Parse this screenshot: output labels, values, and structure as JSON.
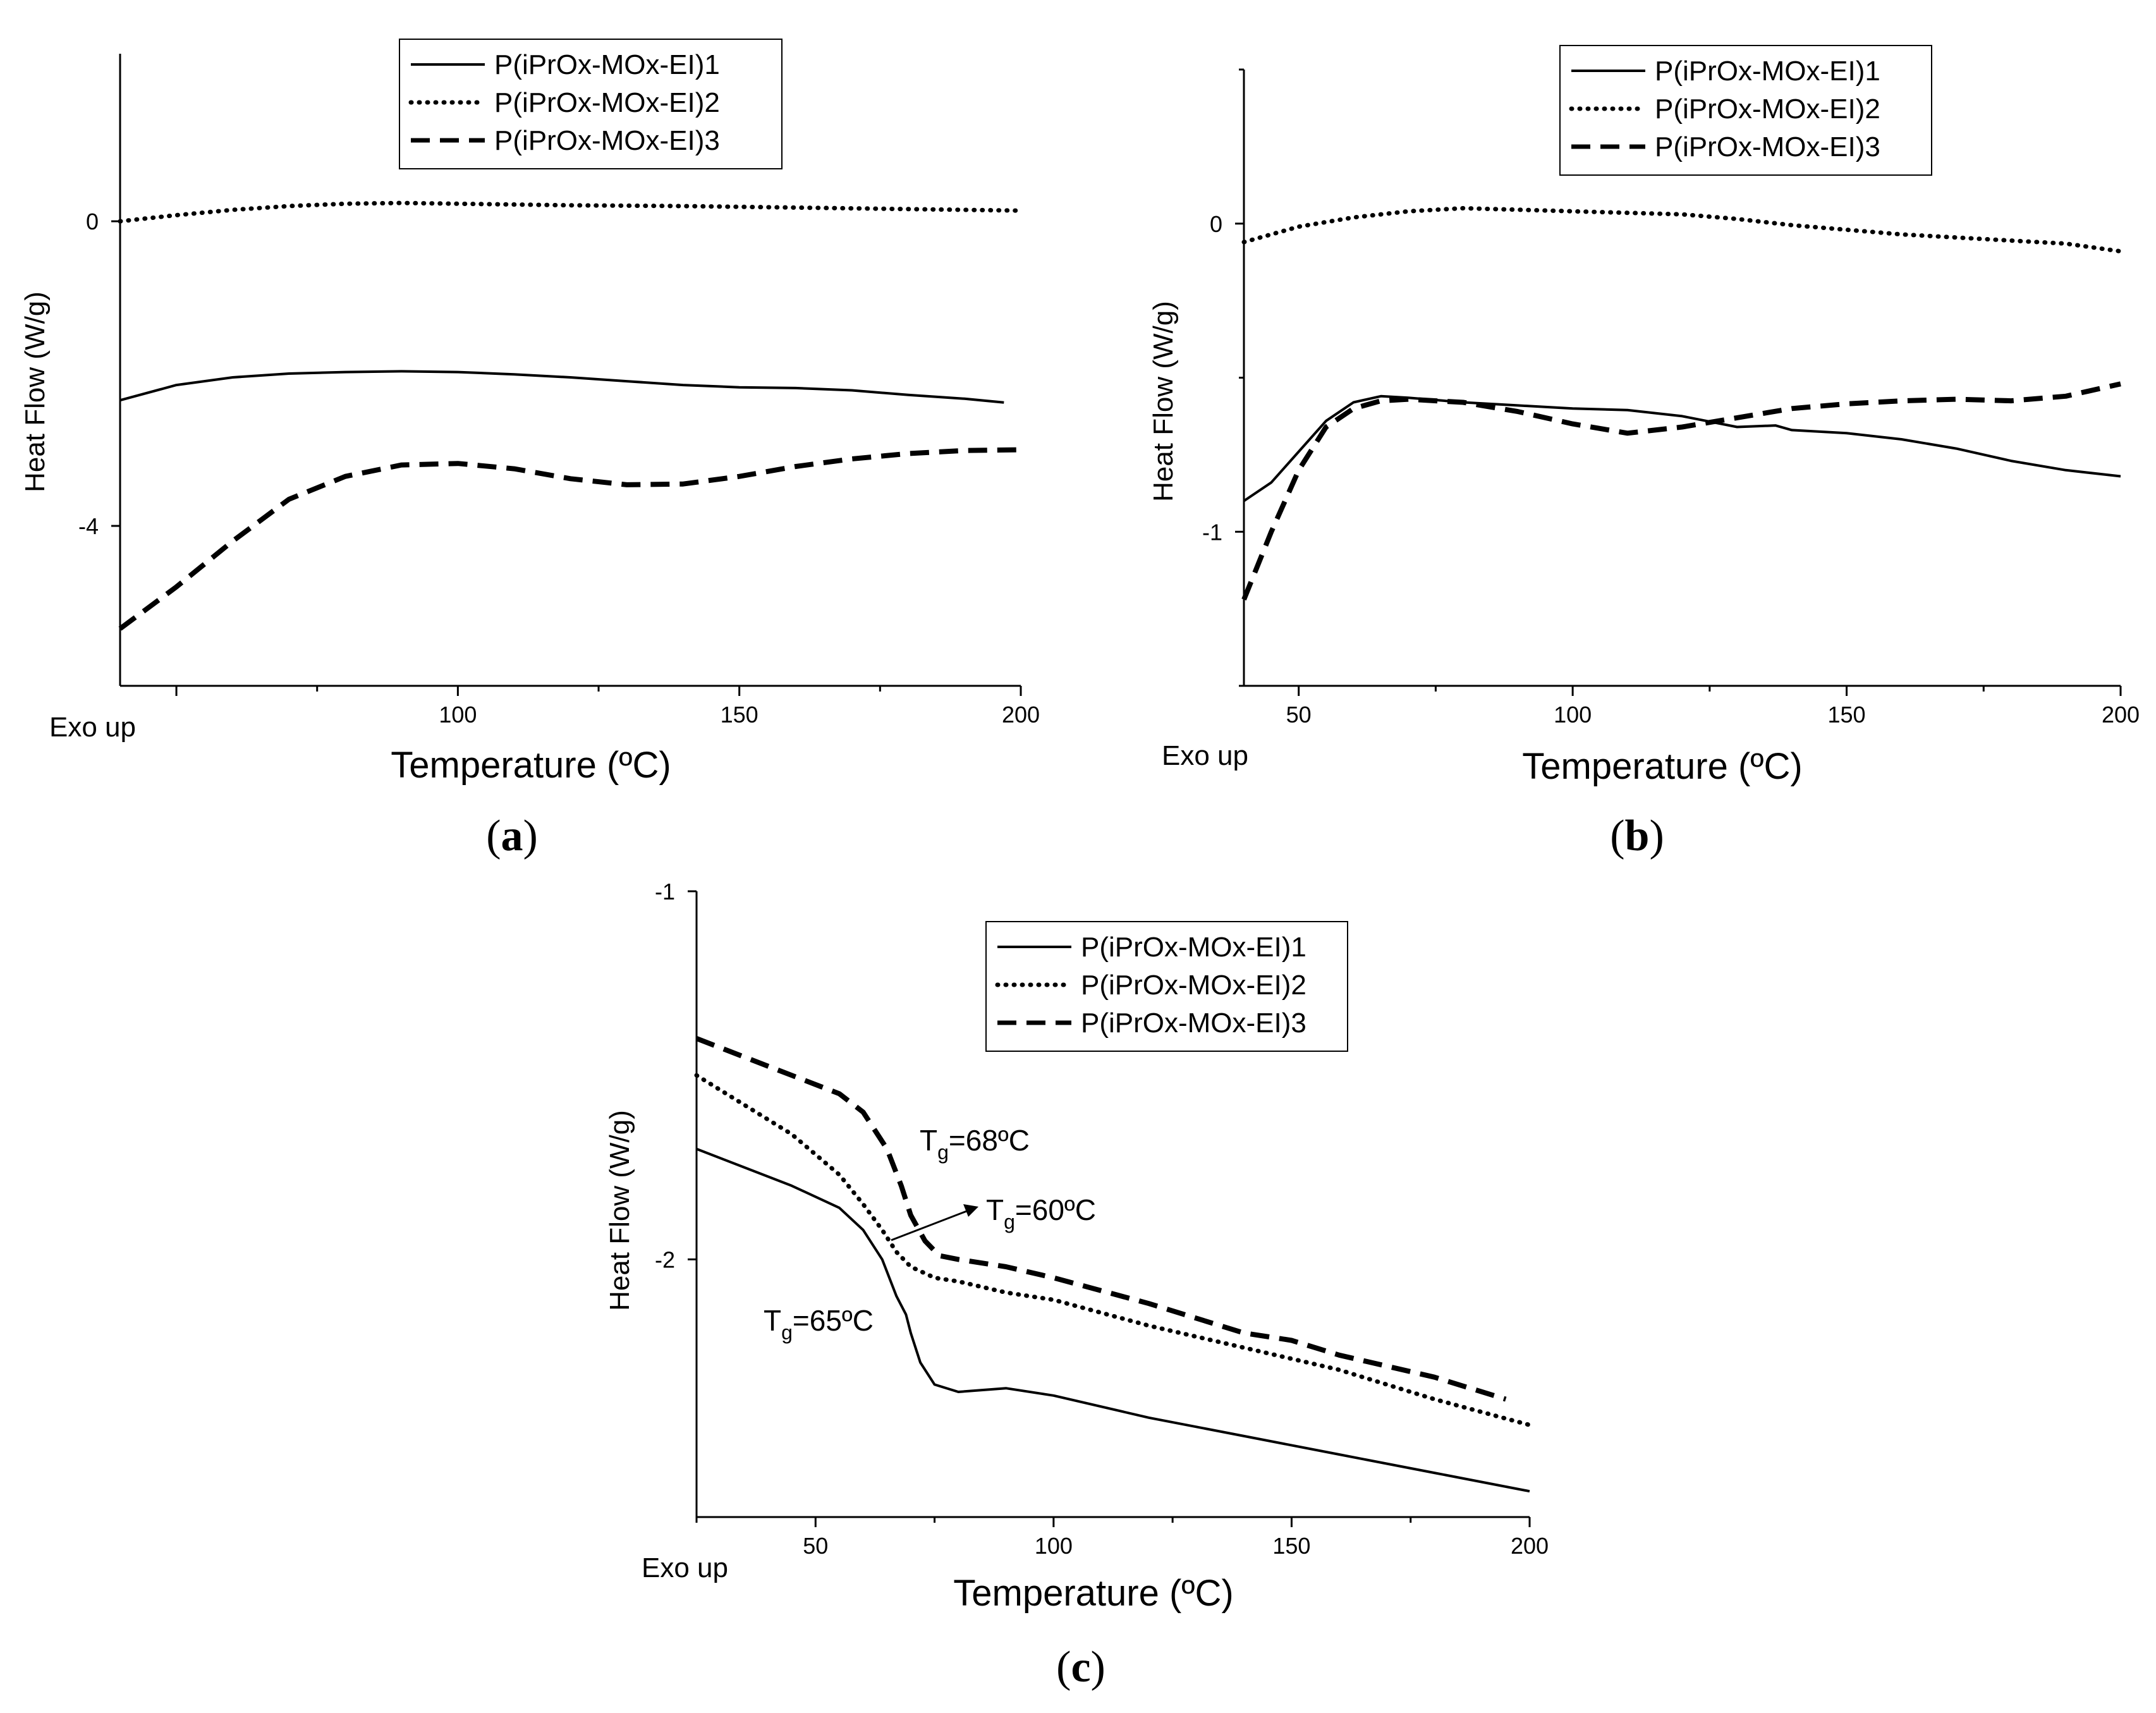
{
  "figure": {
    "captions": [
      "(a)",
      "(b)",
      "(c)"
    ]
  },
  "chart_data": [
    {
      "panel": "(a)",
      "type": "line",
      "xlabel": "Temperature (ºC)",
      "ylabel": "Heat Flow (W/g)",
      "corner_label": "Exo up",
      "xlim": [
        40,
        200
      ],
      "ylim": [
        -6.1,
        2.2
      ],
      "xticks": [
        100,
        150,
        200
      ],
      "yticks": [
        -4,
        0
      ],
      "legend": [
        "P(iPrOx-MOx-EI)1",
        "P(iPrOx-MOx-EI)2",
        "P(iPrOx-MOx-EI)3"
      ],
      "legend_position": "top-right",
      "series": [
        {
          "name": "P(iPrOx-MOx-EI)1",
          "style": "solid",
          "x": [
            40,
            50,
            60,
            70,
            80,
            90,
            100,
            110,
            120,
            130,
            140,
            150,
            160,
            170,
            180,
            190,
            197
          ],
          "y": [
            -2.35,
            -2.15,
            -2.05,
            -2.0,
            -1.98,
            -1.97,
            -1.98,
            -2.01,
            -2.05,
            -2.1,
            -2.15,
            -2.18,
            -2.19,
            -2.22,
            -2.28,
            -2.33,
            -2.38
          ]
        },
        {
          "name": "P(iPrOx-MOx-EI)2",
          "style": "dotted",
          "x": [
            40,
            50,
            60,
            70,
            80,
            90,
            100,
            120,
            140,
            160,
            180,
            200
          ],
          "y": [
            0.0,
            0.08,
            0.15,
            0.2,
            0.23,
            0.24,
            0.23,
            0.21,
            0.2,
            0.18,
            0.16,
            0.14
          ]
        },
        {
          "name": "P(iPrOx-MOx-EI)3",
          "style": "dashed",
          "x": [
            40,
            50,
            60,
            70,
            80,
            90,
            100,
            110,
            120,
            130,
            140,
            150,
            160,
            170,
            180,
            190,
            200
          ],
          "y": [
            -5.35,
            -4.8,
            -4.2,
            -3.65,
            -3.35,
            -3.2,
            -3.18,
            -3.25,
            -3.38,
            -3.46,
            -3.45,
            -3.35,
            -3.22,
            -3.12,
            -3.05,
            -3.01,
            -3.0
          ]
        }
      ]
    },
    {
      "panel": "(b)",
      "type": "line",
      "xlabel": "Temperature (ºC)",
      "ylabel": "Heat Flow (W/g)",
      "corner_label": "Exo up",
      "xlim": [
        40,
        200
      ],
      "ylim": [
        -1.5,
        0.5
      ],
      "xticks": [
        50,
        100,
        150,
        200
      ],
      "yticks": [
        -1,
        0
      ],
      "legend": [
        "P(iPrOx-MOx-EI)1",
        "P(iPrOx-MOx-EI)2",
        "P(iPrOx-MOx-EI)3"
      ],
      "legend_position": "top-right",
      "series": [
        {
          "name": "P(iPrOx-MOx-EI)1",
          "style": "solid",
          "x": [
            40,
            45,
            50,
            55,
            60,
            65,
            70,
            80,
            90,
            100,
            110,
            120,
            130,
            137,
            140,
            150,
            160,
            170,
            180,
            190,
            200
          ],
          "y": [
            -0.9,
            -0.84,
            -0.74,
            -0.64,
            -0.58,
            -0.56,
            -0.565,
            -0.58,
            -0.59,
            -0.6,
            -0.605,
            -0.625,
            -0.66,
            -0.655,
            -0.67,
            -0.68,
            -0.7,
            -0.73,
            -0.77,
            -0.8,
            -0.82
          ]
        },
        {
          "name": "P(iPrOx-MOx-EI)2",
          "style": "dotted",
          "x": [
            40,
            50,
            60,
            70,
            80,
            90,
            100,
            110,
            120,
            130,
            140,
            150,
            160,
            170,
            180,
            190,
            200
          ],
          "y": [
            -0.06,
            -0.01,
            0.02,
            0.04,
            0.05,
            0.045,
            0.04,
            0.035,
            0.03,
            0.015,
            -0.005,
            -0.02,
            -0.035,
            -0.045,
            -0.055,
            -0.065,
            -0.09
          ]
        },
        {
          "name": "P(iPrOx-MOx-EI)3",
          "style": "dashed",
          "x": [
            40,
            45,
            50,
            55,
            60,
            65,
            70,
            80,
            90,
            100,
            110,
            120,
            130,
            140,
            150,
            160,
            170,
            180,
            190,
            200
          ],
          "y": [
            -1.22,
            -1.0,
            -0.8,
            -0.66,
            -0.6,
            -0.575,
            -0.57,
            -0.58,
            -0.61,
            -0.65,
            -0.68,
            -0.66,
            -0.63,
            -0.6,
            -0.585,
            -0.575,
            -0.57,
            -0.575,
            -0.56,
            -0.52
          ]
        }
      ]
    },
    {
      "panel": "(c)",
      "type": "line",
      "xlabel": "Temperature (ºC)",
      "ylabel": "Heat Flow (W/g)",
      "corner_label": "Exo up",
      "xlim": [
        25,
        200
      ],
      "ylim": [
        -2.7,
        -1.0
      ],
      "xticks": [
        50,
        100,
        150,
        200
      ],
      "yticks": [
        -2,
        -1
      ],
      "legend": [
        "P(iPrOx-MOx-EI)1",
        "P(iPrOx-MOx-EI)2",
        "P(iPrOx-MOx-EI)3"
      ],
      "legend_position": "top-right",
      "annotations": [
        {
          "label": "T",
          "subscript": "g",
          "text": "=68ºC"
        },
        {
          "label": "T",
          "subscript": "g",
          "text": "=60ºC"
        },
        {
          "label": "T",
          "subscript": "g",
          "text": "=65ºC"
        }
      ],
      "series": [
        {
          "name": "P(iPrOx-MOx-EI)1",
          "style": "solid",
          "x": [
            25,
            35,
            45,
            55,
            60,
            64,
            67,
            69,
            70,
            72,
            75,
            80,
            90,
            100,
            120,
            140,
            160,
            180,
            200
          ],
          "y": [
            -1.7,
            -1.75,
            -1.8,
            -1.86,
            -1.92,
            -2.0,
            -2.1,
            -2.15,
            -2.2,
            -2.28,
            -2.34,
            -2.36,
            -2.35,
            -2.37,
            -2.43,
            -2.48,
            -2.53,
            -2.58,
            -2.63
          ]
        },
        {
          "name": "P(iPrOx-MOx-EI)2",
          "style": "dotted",
          "x": [
            25,
            35,
            45,
            55,
            60,
            64,
            67,
            70,
            75,
            80,
            90,
            100,
            120,
            140,
            160,
            180,
            200
          ],
          "y": [
            -1.5,
            -1.58,
            -1.66,
            -1.77,
            -1.85,
            -1.92,
            -1.98,
            -2.02,
            -2.05,
            -2.06,
            -2.09,
            -2.11,
            -2.18,
            -2.24,
            -2.3,
            -2.38,
            -2.45
          ]
        },
        {
          "name": "P(iPrOx-MOx-EI)3",
          "style": "dashed",
          "x": [
            25,
            35,
            45,
            55,
            60,
            65,
            68,
            70,
            73,
            76,
            80,
            90,
            100,
            120,
            135,
            140,
            150,
            160,
            180,
            195
          ],
          "y": [
            -1.4,
            -1.45,
            -1.5,
            -1.55,
            -1.6,
            -1.7,
            -1.8,
            -1.88,
            -1.95,
            -1.99,
            -2.0,
            -2.02,
            -2.05,
            -2.12,
            -2.18,
            -2.2,
            -2.22,
            -2.26,
            -2.32,
            -2.38
          ]
        }
      ]
    }
  ]
}
